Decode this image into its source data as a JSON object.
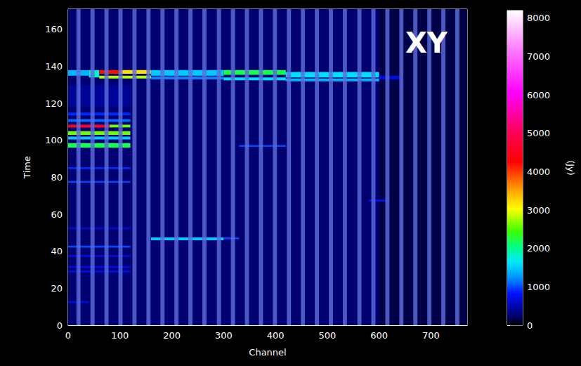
{
  "chart_data": {
    "type": "heatmap",
    "title": "XY",
    "x_label": "Channel",
    "y_label": "Time",
    "colorbar_label": "(Jy)",
    "xlim": [
      0,
      770
    ],
    "xticks": [
      0,
      100,
      200,
      300,
      400,
      500,
      600,
      700
    ],
    "ylim": [
      0,
      171
    ],
    "yticks": [
      0,
      20,
      40,
      60,
      80,
      100,
      120,
      140,
      160
    ],
    "colorbar_range": [
      0,
      8200
    ],
    "colorbar_ticks": [
      0,
      1000,
      2000,
      3000,
      4000,
      5000,
      6000,
      7000,
      8000
    ],
    "cells": [
      [
        0,
        770,
        0,
        171,
        250
      ],
      [
        600,
        770,
        0,
        171,
        160
      ],
      [
        0,
        120,
        118,
        130,
        400
      ],
      [
        0,
        40,
        135,
        138,
        1400
      ],
      [
        40,
        60,
        134,
        138,
        1800
      ],
      [
        60,
        100,
        136,
        138,
        4200
      ],
      [
        100,
        160,
        136,
        138,
        3200
      ],
      [
        60,
        160,
        133.5,
        135,
        2800
      ],
      [
        160,
        300,
        135,
        138,
        1500
      ],
      [
        160,
        300,
        133,
        134.5,
        1200
      ],
      [
        300,
        420,
        135.5,
        138,
        2200
      ],
      [
        300,
        420,
        132.5,
        134,
        1600
      ],
      [
        420,
        600,
        134,
        137,
        1600
      ],
      [
        420,
        600,
        132,
        133.5,
        1400
      ],
      [
        600,
        640,
        133,
        135,
        700
      ],
      [
        0,
        120,
        113.5,
        115,
        900
      ],
      [
        0,
        120,
        110,
        111.5,
        1100
      ],
      [
        0,
        80,
        107,
        108.5,
        4600
      ],
      [
        80,
        120,
        107,
        108.5,
        2600
      ],
      [
        0,
        120,
        103,
        105,
        2600
      ],
      [
        0,
        120,
        100.5,
        102,
        1500
      ],
      [
        0,
        120,
        96,
        98.5,
        2200
      ],
      [
        330,
        420,
        96.5,
        97.5,
        1000
      ],
      [
        0,
        120,
        84.5,
        85.5,
        900
      ],
      [
        0,
        120,
        77,
        78,
        1000
      ],
      [
        580,
        620,
        67,
        68,
        800
      ],
      [
        0,
        120,
        52,
        53,
        600
      ],
      [
        160,
        300,
        46,
        47.5,
        1500
      ],
      [
        300,
        330,
        46.5,
        47.5,
        1000
      ],
      [
        0,
        120,
        42,
        43,
        1000
      ],
      [
        0,
        120,
        37,
        38,
        700
      ],
      [
        0,
        120,
        31,
        32,
        700
      ],
      [
        0,
        120,
        28.5,
        29.5,
        700
      ],
      [
        0,
        40,
        12,
        13,
        700
      ]
    ],
    "flagged_channels": [
      [
        16,
        24
      ],
      [
        43,
        51
      ],
      [
        70,
        78
      ],
      [
        97,
        105
      ],
      [
        124,
        132
      ],
      [
        151,
        159
      ],
      [
        178,
        186
      ],
      [
        205,
        213
      ],
      [
        232,
        240
      ],
      [
        259,
        267
      ],
      [
        287,
        295
      ],
      [
        314,
        322
      ],
      [
        341,
        349
      ],
      [
        368,
        376
      ],
      [
        395,
        403
      ],
      [
        422,
        430
      ],
      [
        449,
        457
      ],
      [
        476,
        484
      ],
      [
        503,
        511
      ],
      [
        530,
        538
      ],
      [
        558,
        566
      ],
      [
        585,
        593
      ],
      [
        612,
        620
      ],
      [
        639,
        647
      ],
      [
        666,
        674
      ],
      [
        693,
        701
      ],
      [
        720,
        728
      ],
      [
        747,
        755
      ]
    ]
  }
}
